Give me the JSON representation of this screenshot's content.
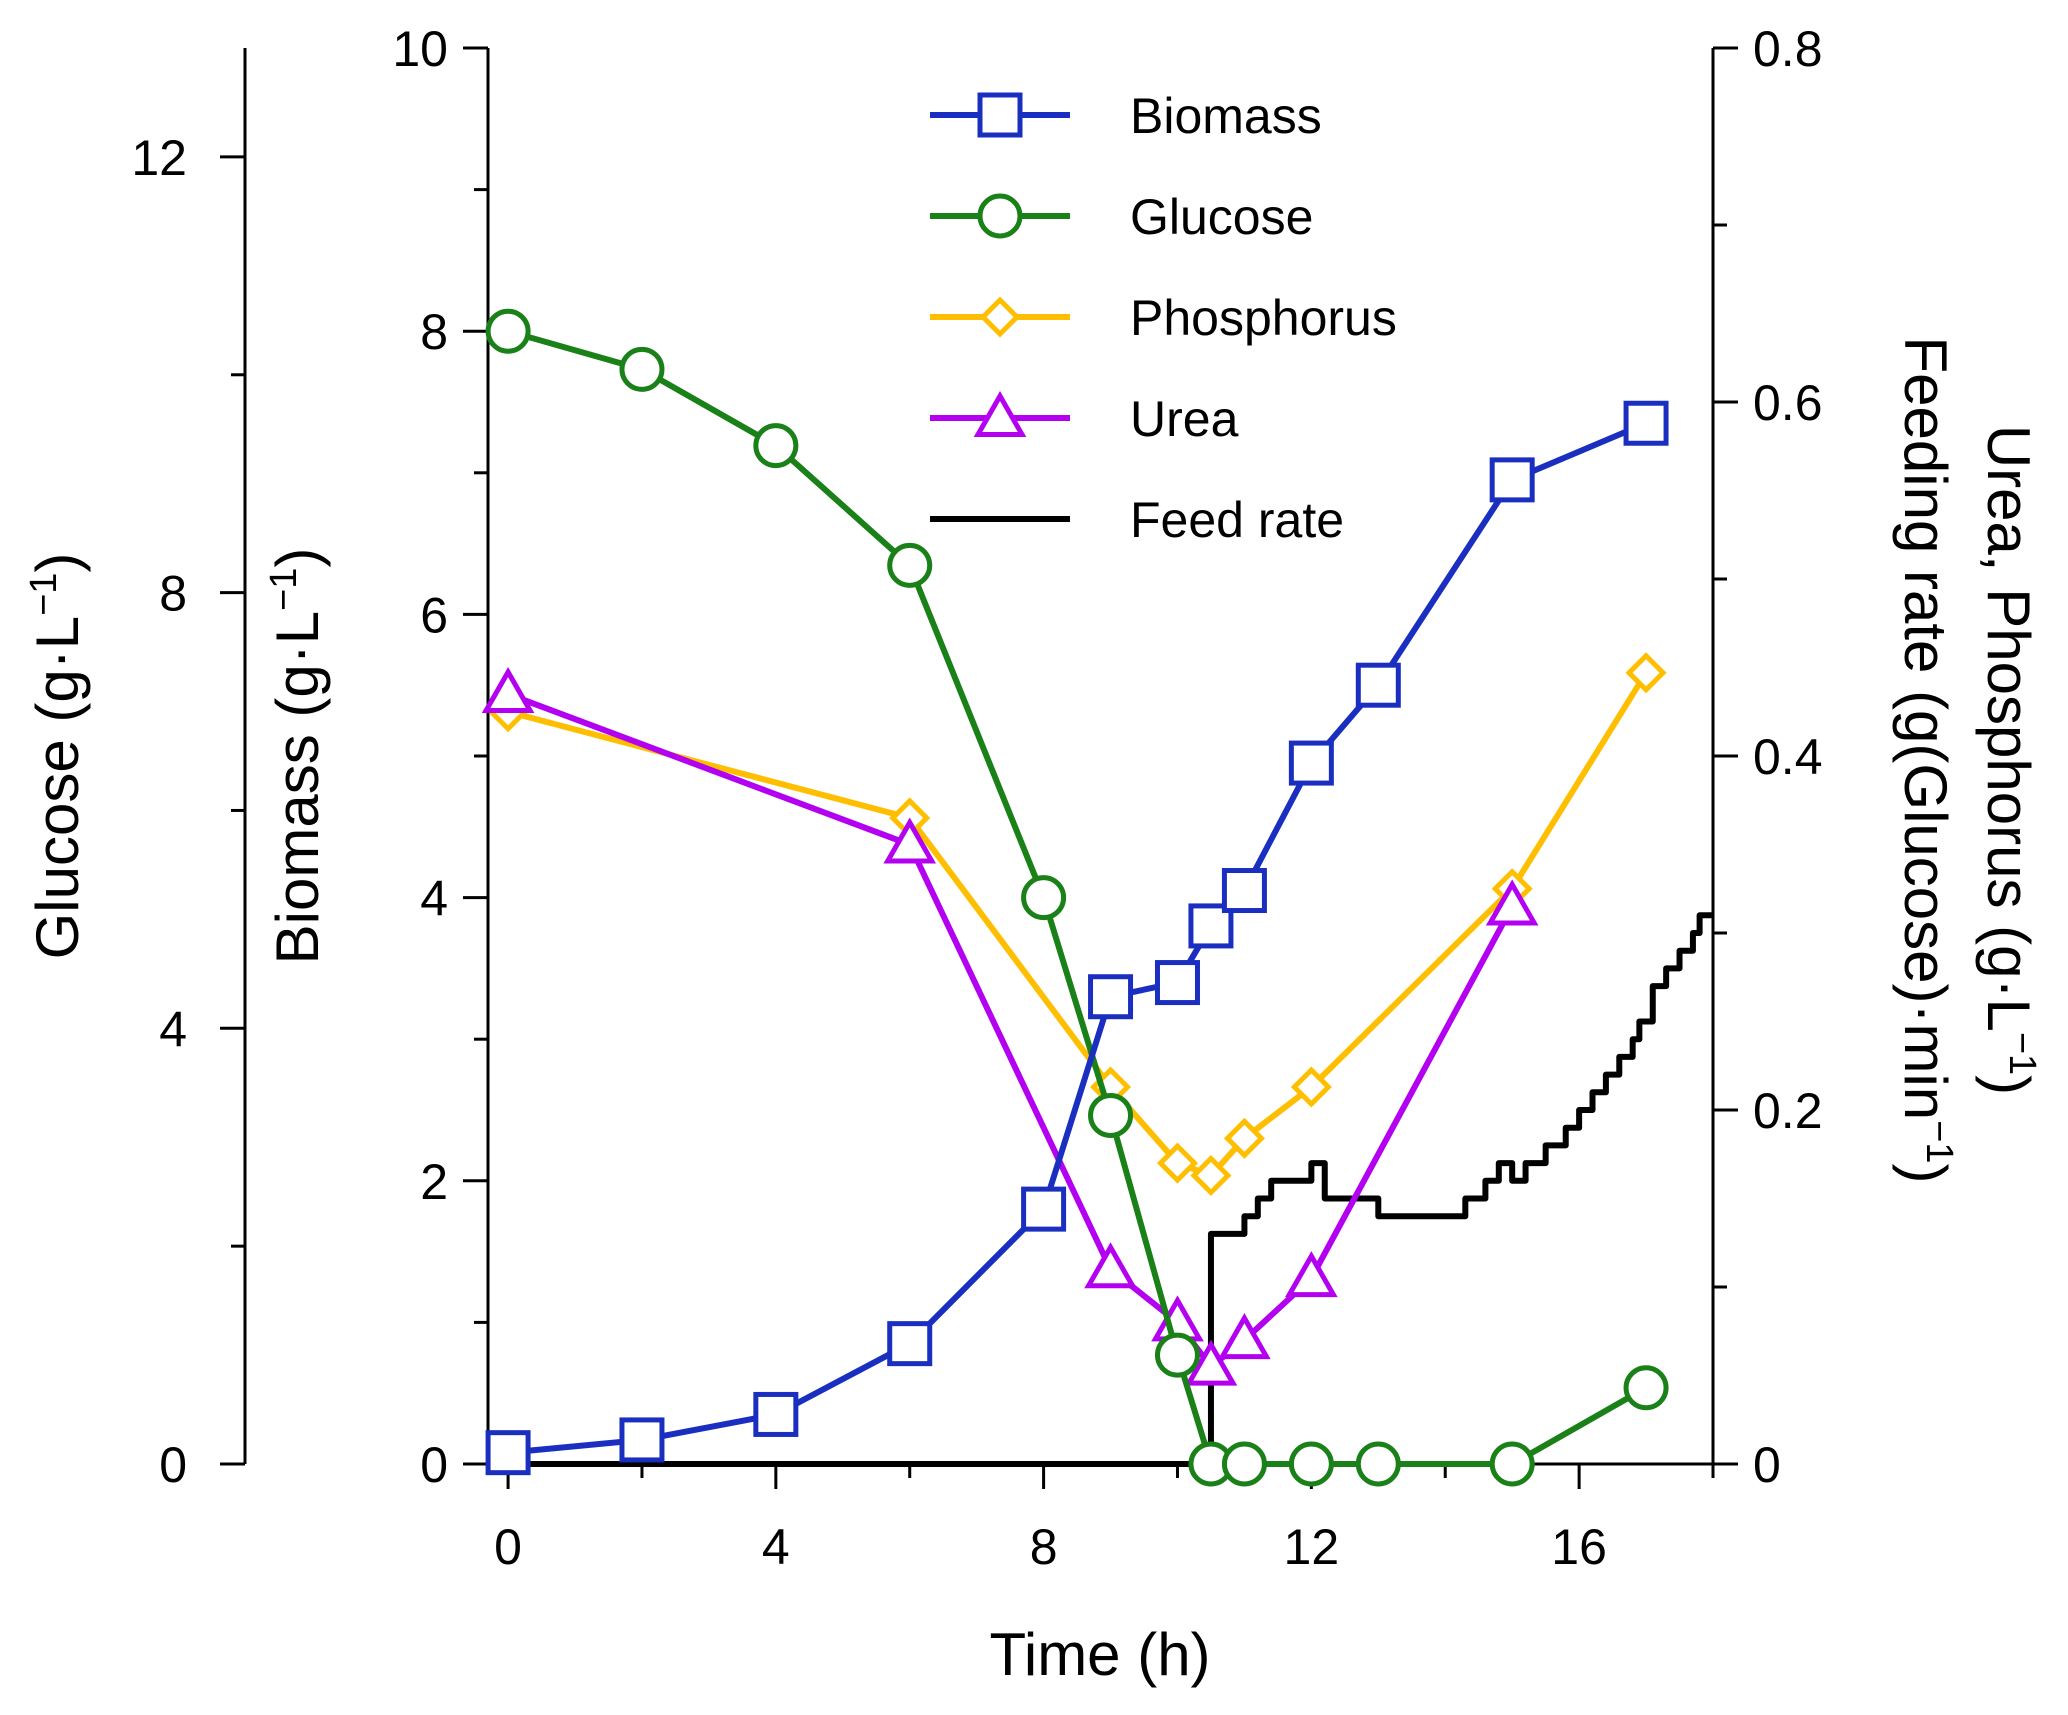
{
  "chart_data": {
    "type": "line",
    "title": "",
    "x": {
      "label": "Time (h)",
      "lim": [
        -0.3,
        18
      ],
      "ticks": [
        0,
        4,
        8,
        12,
        16
      ],
      "tick_labels": [
        "0",
        "4",
        "8",
        "12",
        "16"
      ],
      "minor_ticks": [
        2,
        6,
        10,
        14,
        18
      ]
    },
    "axes": {
      "glucose": {
        "label_main": "Glucose (g·L",
        "label_sup": "−1",
        "label_end": ")",
        "lim": [
          0,
          13
        ],
        "ticks": [
          0,
          4,
          8,
          12
        ],
        "tick_labels": [
          "0",
          "4",
          "8",
          "12"
        ],
        "minor_ticks": [
          2,
          6,
          10
        ]
      },
      "biomass": {
        "label_main": "Biomass (g·L",
        "label_sup": "−1",
        "label_end": ")",
        "lim": [
          0,
          10
        ],
        "ticks": [
          0,
          2,
          4,
          6,
          8,
          10
        ],
        "tick_labels": [
          "0",
          "2",
          "4",
          "6",
          "8",
          "10"
        ],
        "minor_ticks": [
          1,
          3,
          5,
          7,
          9
        ]
      },
      "right": {
        "label_line1_main": "Urea, Phosphorus (g·L",
        "label_line1_sup": "−1",
        "label_line1_end": ")",
        "label_line2_main": "Feeding rate (g(Glucose)·min",
        "label_line2_sup": "−1",
        "label_line2_end": ")",
        "lim": [
          0,
          0.8
        ],
        "ticks": [
          0,
          0.2,
          0.4,
          0.6,
          0.8
        ],
        "tick_labels": [
          "0",
          "0.2",
          "0.4",
          "0.6",
          "0.8"
        ],
        "minor_ticks": [
          0.1,
          0.3,
          0.5,
          0.7
        ]
      }
    },
    "series": [
      {
        "name": "Biomass",
        "axis": "biomass",
        "marker": "square",
        "color": "#1a2fbf",
        "x": [
          0,
          2,
          4,
          6,
          8,
          9,
          10,
          10.5,
          11,
          12,
          13,
          15,
          17
        ],
        "y": [
          0.08,
          0.17,
          0.35,
          0.85,
          1.8,
          3.3,
          3.4,
          3.8,
          4.05,
          4.95,
          5.5,
          6.95,
          7.35
        ]
      },
      {
        "name": "Glucose",
        "axis": "glucose",
        "marker": "circle",
        "color": "#1a8018",
        "x": [
          0,
          2,
          4,
          6,
          8,
          9,
          10,
          10.5,
          11,
          12,
          13,
          15,
          17
        ],
        "y": [
          10.4,
          10.05,
          9.35,
          8.25,
          5.2,
          3.2,
          1.0,
          0.0,
          0.0,
          0.0,
          0.0,
          0.0,
          0.7
        ]
      },
      {
        "name": "Phosphorus",
        "axis": "right",
        "marker": "diamond",
        "color": "#ffbf00",
        "x": [
          0,
          6,
          9,
          10,
          10.5,
          11,
          12,
          15,
          17
        ],
        "y": [
          0.425,
          0.365,
          0.213,
          0.17,
          0.163,
          0.184,
          0.213,
          0.325,
          0.447
        ]
      },
      {
        "name": "Urea",
        "axis": "right",
        "marker": "triangle",
        "color": "#b400f0",
        "x": [
          0,
          6,
          9,
          10,
          10.5,
          11,
          12,
          15,
          17
        ],
        "y": [
          0.435,
          0.35,
          0.11,
          0.08,
          0.055,
          0.07,
          0.105,
          0.315,
          null
        ]
      },
      {
        "name": "Feed rate",
        "axis": "right",
        "marker": "none",
        "color": "#000000",
        "step": true,
        "x": [
          0,
          10.5,
          10.5,
          11,
          11,
          11.2,
          11.2,
          11.4,
          11.4,
          12,
          12,
          12.2,
          12.2,
          13,
          13,
          14.3,
          14.3,
          14.6,
          14.6,
          14.8,
          14.8,
          15,
          15,
          15.2,
          15.2,
          15.5,
          15.5,
          15.8,
          15.8,
          16,
          16,
          16.2,
          16.2,
          16.4,
          16.4,
          16.6,
          16.6,
          16.8,
          16.8,
          16.9,
          16.9,
          17.1,
          17.1,
          17.3,
          17.3,
          17.5,
          17.5,
          17.7,
          17.7,
          17.8,
          17.8,
          18
        ],
        "y": [
          0,
          0,
          0.13,
          0.13,
          0.14,
          0.14,
          0.15,
          0.15,
          0.16,
          0.16,
          0.17,
          0.17,
          0.15,
          0.15,
          0.14,
          0.14,
          0.15,
          0.15,
          0.16,
          0.16,
          0.17,
          0.17,
          0.16,
          0.16,
          0.17,
          0.17,
          0.18,
          0.18,
          0.19,
          0.19,
          0.2,
          0.2,
          0.21,
          0.21,
          0.22,
          0.22,
          0.23,
          0.23,
          0.24,
          0.24,
          0.25,
          0.25,
          0.27,
          0.27,
          0.28,
          0.28,
          0.29,
          0.29,
          0.3,
          0.3,
          0.31,
          0.31
        ]
      }
    ],
    "legend": {
      "position": "top-center",
      "entries": [
        "Biomass",
        "Glucose",
        "Phosphorus",
        "Urea",
        "Feed rate"
      ]
    }
  }
}
